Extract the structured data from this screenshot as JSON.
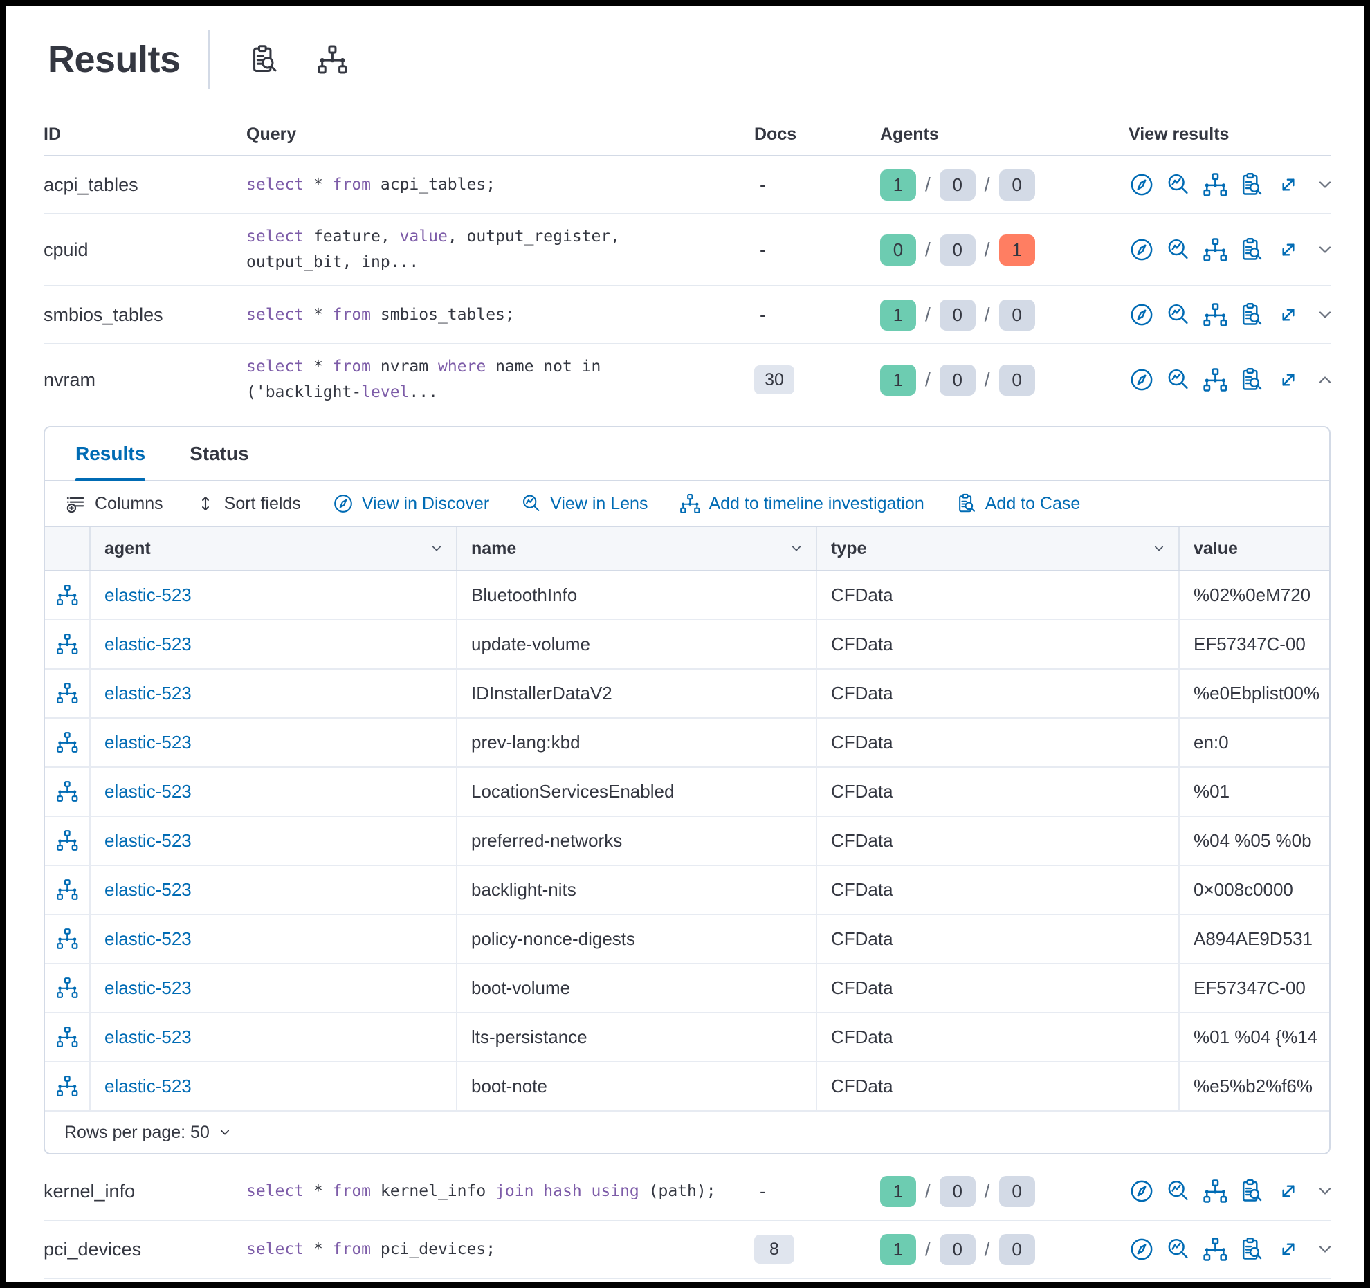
{
  "colors": {
    "accent": "#006BB4",
    "success_badge": "#6DCCB1",
    "danger_badge": "#FF7E62",
    "default_badge": "#D3DAE6",
    "docs_badge": "#E0E5EE",
    "code_keyword": "#7D5CA8",
    "text": "#343741"
  },
  "header": {
    "title": "Results"
  },
  "table": {
    "columns": {
      "id": "ID",
      "query": "Query",
      "docs": "Docs",
      "agents": "Agents",
      "view_results": "View results"
    }
  },
  "view_result_actions": [
    "discover",
    "lens",
    "timeline",
    "case",
    "expand"
  ],
  "queries": [
    {
      "id": "acpi_tables",
      "query": [
        [
          {
            "t": "select",
            "k": 1
          },
          {
            "t": " * "
          },
          {
            "t": "from",
            "k": 1
          },
          {
            "t": " acpi_tables;"
          }
        ]
      ],
      "docs": "-",
      "agents": [
        {
          "count": "1",
          "variant": "success"
        },
        {
          "count": "0",
          "variant": "default"
        },
        {
          "count": "0",
          "variant": "default"
        }
      ],
      "expanded": false
    },
    {
      "id": "cpuid",
      "query": [
        [
          {
            "t": "select",
            "k": 1
          },
          {
            "t": " feature, "
          },
          {
            "t": "value",
            "k": 1
          },
          {
            "t": ", output_register,"
          }
        ],
        [
          {
            "t": "output_bit, inp..."
          }
        ]
      ],
      "docs": "-",
      "agents": [
        {
          "count": "0",
          "variant": "success"
        },
        {
          "count": "0",
          "variant": "default"
        },
        {
          "count": "1",
          "variant": "danger"
        }
      ],
      "expanded": false
    },
    {
      "id": "smbios_tables",
      "query": [
        [
          {
            "t": "select",
            "k": 1
          },
          {
            "t": " * "
          },
          {
            "t": "from",
            "k": 1
          },
          {
            "t": " smbios_tables;"
          }
        ]
      ],
      "docs": "-",
      "agents": [
        {
          "count": "1",
          "variant": "success"
        },
        {
          "count": "0",
          "variant": "default"
        },
        {
          "count": "0",
          "variant": "default"
        }
      ],
      "expanded": false
    },
    {
      "id": "nvram",
      "query": [
        [
          {
            "t": "select",
            "k": 1
          },
          {
            "t": " * "
          },
          {
            "t": "from",
            "k": 1
          },
          {
            "t": " nvram "
          },
          {
            "t": "where",
            "k": 1
          },
          {
            "t": " name not in"
          }
        ],
        [
          {
            "t": "('backlight-"
          },
          {
            "t": "level",
            "k": 1
          },
          {
            "t": "..."
          }
        ]
      ],
      "docs": "30",
      "agents": [
        {
          "count": "1",
          "variant": "success"
        },
        {
          "count": "0",
          "variant": "default"
        },
        {
          "count": "0",
          "variant": "default"
        }
      ],
      "expanded": true
    },
    {
      "id": "kernel_info",
      "query": [
        [
          {
            "t": "select",
            "k": 1
          },
          {
            "t": " * "
          },
          {
            "t": "from",
            "k": 1
          },
          {
            "t": " kernel_info "
          },
          {
            "t": "join",
            "k": 1
          },
          {
            "t": " "
          },
          {
            "t": "hash",
            "k": 1
          },
          {
            "t": " "
          },
          {
            "t": "using",
            "k": 1
          },
          {
            "t": " (path);"
          }
        ]
      ],
      "docs": "-",
      "agents": [
        {
          "count": "1",
          "variant": "success"
        },
        {
          "count": "0",
          "variant": "default"
        },
        {
          "count": "0",
          "variant": "default"
        }
      ],
      "expanded": false
    },
    {
      "id": "pci_devices",
      "query": [
        [
          {
            "t": "select",
            "k": 1
          },
          {
            "t": " * "
          },
          {
            "t": "from",
            "k": 1
          },
          {
            "t": " pci_devices;"
          }
        ]
      ],
      "docs": "8",
      "agents": [
        {
          "count": "1",
          "variant": "success"
        },
        {
          "count": "0",
          "variant": "default"
        },
        {
          "count": "0",
          "variant": "default"
        }
      ],
      "expanded": false
    }
  ],
  "panel": {
    "tabs": [
      {
        "label": "Results",
        "active": true
      },
      {
        "label": "Status",
        "active": false
      }
    ],
    "toolbar": [
      {
        "label": "Columns",
        "icon": "columns",
        "style": "plain"
      },
      {
        "label": "Sort fields",
        "icon": "sort",
        "style": "plain"
      },
      {
        "label": "View in Discover",
        "icon": "discover",
        "style": "link"
      },
      {
        "label": "View in Lens",
        "icon": "lens",
        "style": "link"
      },
      {
        "label": "Add to timeline investigation",
        "icon": "timeline",
        "style": "link"
      },
      {
        "label": "Add to Case",
        "icon": "case",
        "style": "link"
      }
    ],
    "grid": {
      "columns": [
        {
          "field": "agent",
          "label": "agent",
          "sortable": true
        },
        {
          "field": "name",
          "label": "name",
          "sortable": true
        },
        {
          "field": "type",
          "label": "type",
          "sortable": true
        },
        {
          "field": "value",
          "label": "value",
          "sortable": false
        }
      ],
      "rows": [
        {
          "agent": "elastic-523",
          "name": "BluetoothInfo",
          "type": "CFData",
          "value": "%02%0eM720"
        },
        {
          "agent": "elastic-523",
          "name": "update-volume",
          "type": "CFData",
          "value": "EF57347C-00"
        },
        {
          "agent": "elastic-523",
          "name": "IDInstallerDataV2",
          "type": "CFData",
          "value": "%e0Ebplist00%"
        },
        {
          "agent": "elastic-523",
          "name": "prev-lang:kbd",
          "type": "CFData",
          "value": "en:0"
        },
        {
          "agent": "elastic-523",
          "name": "LocationServicesEnabled",
          "type": "CFData",
          "value": "%01"
        },
        {
          "agent": "elastic-523",
          "name": "preferred-networks",
          "type": "CFData",
          "value": "%04 %05 %0b"
        },
        {
          "agent": "elastic-523",
          "name": "backlight-nits",
          "type": "CFData",
          "value": "0×008c0000"
        },
        {
          "agent": "elastic-523",
          "name": "policy-nonce-digests",
          "type": "CFData",
          "value": "A894AE9D531"
        },
        {
          "agent": "elastic-523",
          "name": "boot-volume",
          "type": "CFData",
          "value": "EF57347C-00"
        },
        {
          "agent": "elastic-523",
          "name": "lts-persistance",
          "type": "CFData",
          "value": "%01 %04 {%14"
        },
        {
          "agent": "elastic-523",
          "name": "boot-note",
          "type": "CFData",
          "value": "%e5%b2%f6%"
        }
      ]
    },
    "footer": {
      "rows_per_page": "Rows per page: 50"
    }
  }
}
